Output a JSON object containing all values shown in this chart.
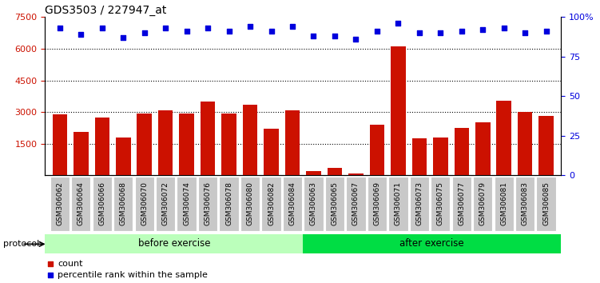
{
  "title": "GDS3503 / 227947_at",
  "samples": [
    "GSM306062",
    "GSM306064",
    "GSM306066",
    "GSM306068",
    "GSM306070",
    "GSM306072",
    "GSM306074",
    "GSM306076",
    "GSM306078",
    "GSM306080",
    "GSM306082",
    "GSM306084",
    "GSM306063",
    "GSM306065",
    "GSM306067",
    "GSM306069",
    "GSM306071",
    "GSM306073",
    "GSM306075",
    "GSM306077",
    "GSM306079",
    "GSM306081",
    "GSM306083",
    "GSM306085"
  ],
  "counts": [
    2900,
    2050,
    2750,
    1800,
    2950,
    3100,
    2950,
    3500,
    2950,
    3350,
    2200,
    3100,
    200,
    350,
    80,
    2400,
    6100,
    1750,
    1800,
    2250,
    2500,
    3550,
    3000,
    2800
  ],
  "percentiles": [
    93,
    89,
    93,
    87,
    90,
    93,
    91,
    93,
    91,
    94,
    91,
    94,
    88,
    88,
    86,
    91,
    96,
    90,
    90,
    91,
    92,
    93,
    90,
    91
  ],
  "before_exercise_count": 12,
  "after_exercise_count": 12,
  "bar_color": "#cc1100",
  "dot_color": "#0000dd",
  "before_color": "#bbffbb",
  "after_color": "#00dd44",
  "protocol_label": "protocol",
  "before_label": "before exercise",
  "after_label": "after exercise",
  "legend_count": "count",
  "legend_percentile": "percentile rank within the sample",
  "ylim_left": [
    0,
    7500
  ],
  "ylim_right": [
    0,
    100
  ],
  "yticks_left": [
    1500,
    3000,
    4500,
    6000,
    7500
  ],
  "yticks_right": [
    0,
    25,
    50,
    75,
    100
  ],
  "grid_lines": [
    1500,
    3000,
    4500,
    6000
  ],
  "tick_fontsize": 6.5,
  "label_fontsize": 8,
  "title_fontsize": 10
}
